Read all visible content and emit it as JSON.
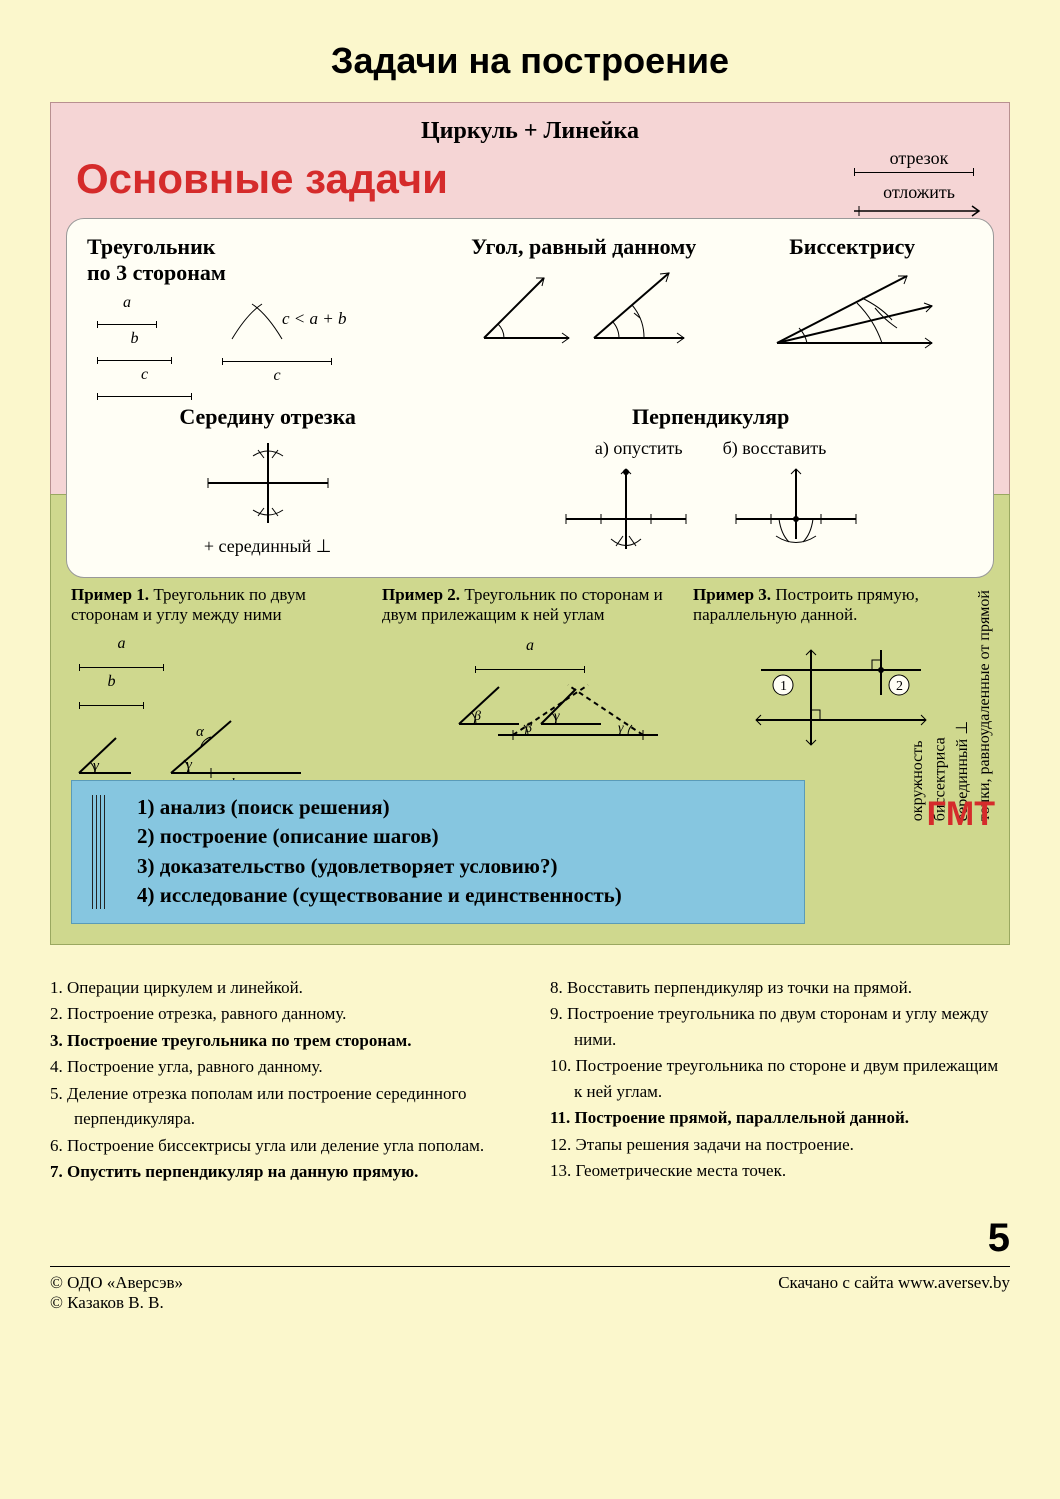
{
  "title": "Задачи на построение",
  "tool_title": "Циркуль + Линейка",
  "red_heading": "Основные задачи",
  "segment_label_top": "отрезок",
  "segment_label_bottom": "отложить",
  "card": {
    "triangle_title_1": "Треугольник",
    "triangle_title_2": "по 3 сторонам",
    "seg_a": "a",
    "seg_b": "b",
    "seg_c": "c",
    "condition": "c < a + b",
    "angle_title": "Угол, равный данному",
    "bisector_title": "Биссектрису",
    "midpoint_title": "Середину отрезка",
    "midpoint_foot": "+ серединный  ⊥",
    "perp_title": "Перпендикуляр",
    "perp_a": "а) опустить",
    "perp_b": "б) восставить"
  },
  "examples": {
    "ex1_bold": "Пример 1.",
    "ex1_text": " Треугольник по двум сторонам и углу между ними",
    "ex2_bold": "Пример 2.",
    "ex2_text": " Треугольник по сторонам и двум прилежащим к ней углам",
    "ex3_bold": "Пример 3.",
    "ex3_text": " Построить прямую, параллельную данной.",
    "seg_a": "a",
    "seg_b": "b",
    "gamma": "γ",
    "alpha": "α",
    "beta": "β",
    "c1": "1",
    "c2": "2"
  },
  "steps": [
    "1) анализ (поиск решения)",
    "2) построение (описание шагов)",
    "3) доказательство (удовлетворяет  условию?)",
    "4) исследование (существование и единственность)"
  ],
  "gmt": "ГМТ",
  "gmt_lines": [
    "окружность",
    "биссектриса",
    "серединный  ⊥",
    "точки, равноудаленные  от прямой"
  ],
  "list_left": [
    {
      "n": "1.",
      "t": "Операции циркулем и линейкой.",
      "b": false
    },
    {
      "n": "2.",
      "t": "Построение отрезка, равного данному.",
      "b": false
    },
    {
      "n": "3.",
      "t": "Построение треугольника по трем сторонам.",
      "b": true
    },
    {
      "n": "4.",
      "t": "Построение угла, равного данному.",
      "b": false
    },
    {
      "n": "5.",
      "t": "Деление отрезка пополам или построение серединного перпендикуляра.",
      "b": false
    },
    {
      "n": "6.",
      "t": "Построение биссектрисы угла или деление угла пополам.",
      "b": false
    },
    {
      "n": "7.",
      "t": "Опустить перпендикуляр на данную прямую.",
      "b": true
    }
  ],
  "list_right": [
    {
      "n": "8.",
      "t": "Восставить перпендикуляр из точки на прямой.",
      "b": false
    },
    {
      "n": "9.",
      "t": "Построение треугольника по двум  сторонам и углу между ними.",
      "b": false
    },
    {
      "n": "10.",
      "t": "Построение треугольника по стороне и двум прилежащим к ней углам.",
      "b": false
    },
    {
      "n": "11.",
      "t": "Построение прямой, параллельной данной.",
      "b": true
    },
    {
      "n": "12.",
      "t": "Этапы решения задачи на построение.",
      "b": false
    },
    {
      "n": "13.",
      "t": "Геометрические места точек.",
      "b": false
    }
  ],
  "page_num": "5",
  "copyright1": "© ОДО  «Аверсэв»",
  "copyright2": "© Казаков В. В.",
  "download": "Скачано с сайта www.aversev.by",
  "colors": {
    "page_bg": "#fbf7cc",
    "pink_bg": "#f5d5d5",
    "green_bg": "#cfd88e",
    "blue_bg": "#86c6e0",
    "red": "#d52b2b",
    "stroke": "#000000"
  }
}
